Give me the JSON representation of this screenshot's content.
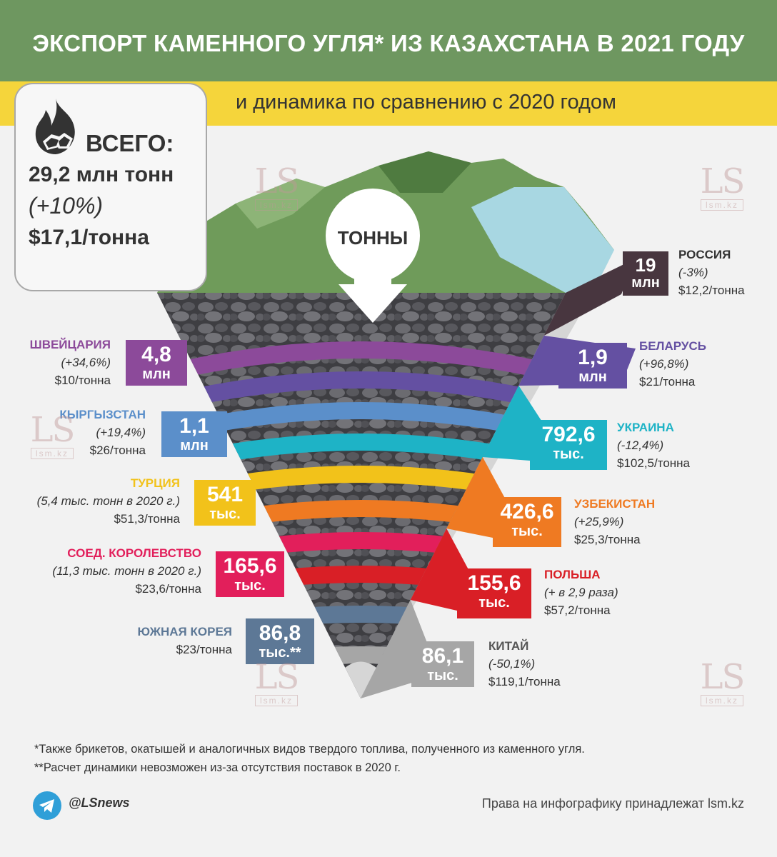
{
  "title": "ЭКСПОРТ КАМЕННОГО УГЛЯ* ИЗ КАЗАХСТАНА В 2021 ГОДУ",
  "subtitle": "и динамика по сравнению с 2020 годом",
  "total": {
    "label": "ВСЕГО:",
    "value": "29,2 млн тонн",
    "change": "(+10%)",
    "price": "$17,1/тонна"
  },
  "funnel_label": "ТОННЫ",
  "icons": [
    "fire-coal-icon",
    "arrow-down-icon",
    "telegram-icon"
  ],
  "chart_data": {
    "type": "funnel",
    "title": "ЭКСПОРТ КАМЕННОГО УГЛЯ* ИЗ КАЗАХСТАНА В 2021 ГОДУ",
    "unit": "ТОННЫ",
    "series": [
      {
        "country": "РОССИЯ",
        "value_text": "19",
        "unit": "млн",
        "value_tonnes": 19000000,
        "change": "(-3%)",
        "price": "$12,2/тонна",
        "color": "#48363f",
        "side": "right"
      },
      {
        "country": "ШВЕЙЦАРИЯ",
        "value_text": "4,8",
        "unit": "млн",
        "value_tonnes": 4800000,
        "change": "(+34,6%)",
        "price": "$10/тонна",
        "color": "#8c4a9a",
        "side": "left"
      },
      {
        "country": "БЕЛАРУСЬ",
        "value_text": "1,9",
        "unit": "млн",
        "value_tonnes": 1900000,
        "change": "(+96,8%)",
        "price": "$21/тонна",
        "color": "#6450a2",
        "side": "right"
      },
      {
        "country": "КЫРГЫЗСТАН",
        "value_text": "1,1",
        "unit": "млн",
        "value_tonnes": 1100000,
        "change": "(+19,4%)",
        "price": "$26/тонна",
        "color": "#5b8fca",
        "side": "left"
      },
      {
        "country": "УКРАИНА",
        "value_text": "792,6",
        "unit": "тыс.",
        "value_tonnes": 792600,
        "change": "(-12,4%)",
        "price": "$102,5/тонна",
        "color": "#1eb3c6",
        "side": "right"
      },
      {
        "country": "ТУРЦИЯ",
        "value_text": "541",
        "unit": "тыс.",
        "value_tonnes": 541000,
        "change": "(5,4 тыс. тонн в 2020 г.)",
        "price": "$51,3/тонна",
        "color": "#f2c21a",
        "side": "left"
      },
      {
        "country": "УЗБЕКИСТАН",
        "value_text": "426,6",
        "unit": "тыс.",
        "value_tonnes": 426600,
        "change": "(+25,9%)",
        "price": "$25,3/тонна",
        "color": "#ef7a22",
        "side": "right"
      },
      {
        "country": "СОЕД. КОРОЛЕВСТВО",
        "value_text": "165,6",
        "unit": "тыс.",
        "value_tonnes": 165600,
        "change": "(11,3 тыс. тонн в 2020 г.)",
        "price": "$23,6/тонна",
        "color": "#e21f5b",
        "side": "left"
      },
      {
        "country": "ПОЛЬША",
        "value_text": "155,6",
        "unit": "тыс.",
        "value_tonnes": 155600,
        "change": "(+ в 2,9 раза)",
        "price": "$57,2/тонна",
        "color": "#d91f26",
        "side": "right"
      },
      {
        "country": "ЮЖНАЯ КОРЕЯ",
        "value_text": "86,8",
        "unit": "тыс.**",
        "value_tonnes": 86800,
        "change": "",
        "price": "$23/тонна",
        "color": "#5d7896",
        "side": "left"
      },
      {
        "country": "КИТАЙ",
        "value_text": "86,1",
        "unit": "тыс.",
        "value_tonnes": 86100,
        "change": "(-50,1%)",
        "price": "$119,1/тонна",
        "color": "#a6a6a6",
        "side": "right"
      }
    ]
  },
  "footnotes": [
    "*Также брикетов, окатышей и аналогичных видов твердого топлива, полученного из каменного угля.",
    "**Расчет динамики невозможен из-за отсутствия поставок в 2020 г."
  ],
  "social_handle": "@LSnews",
  "copyright": "Права на инфографику принадлежат lsm.kz",
  "watermark": {
    "big": "LS",
    "small": "lsm.kz"
  }
}
